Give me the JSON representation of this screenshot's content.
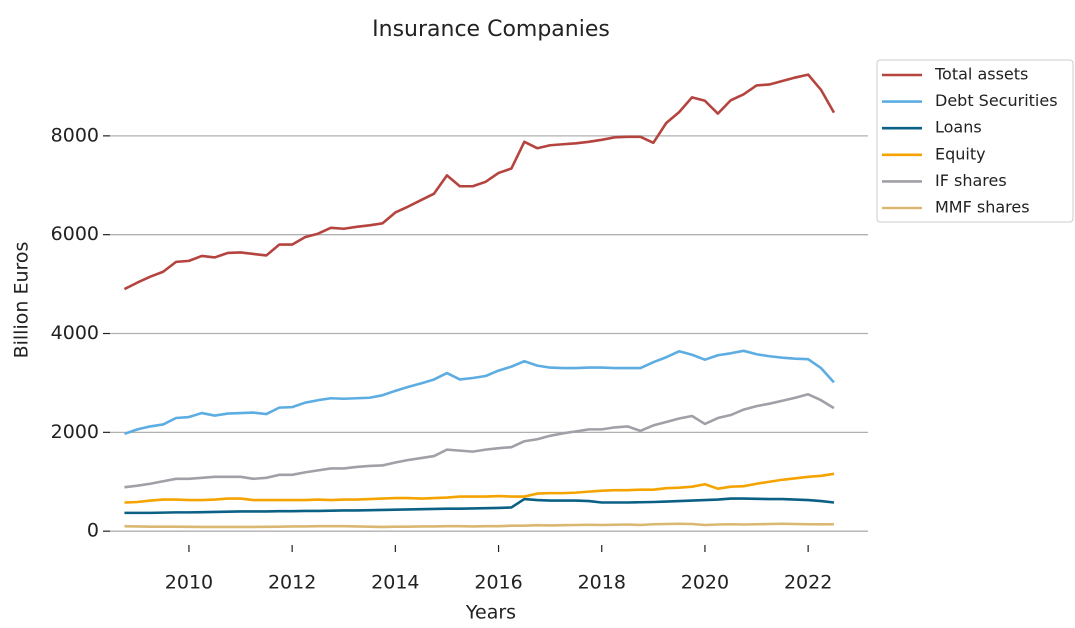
{
  "chart_data": {
    "type": "line",
    "title": "Insurance Companies",
    "x_label": "Years",
    "y_label": "Billion Euros",
    "x": [
      2008.75,
      2009,
      2009.25,
      2009.5,
      2009.75,
      2010,
      2010.25,
      2010.5,
      2010.75,
      2011,
      2011.25,
      2011.5,
      2011.75,
      2012,
      2012.25,
      2012.5,
      2012.75,
      2013,
      2013.25,
      2013.5,
      2013.75,
      2014,
      2014.25,
      2014.5,
      2014.75,
      2015,
      2015.25,
      2015.5,
      2015.75,
      2016,
      2016.25,
      2016.5,
      2016.75,
      2017,
      2017.25,
      2017.5,
      2017.75,
      2018,
      2018.25,
      2018.5,
      2018.75,
      2019,
      2019.25,
      2019.5,
      2019.75,
      2020,
      2020.25,
      2020.5,
      2020.75,
      2021,
      2021.25,
      2021.5,
      2021.75,
      2022,
      2022.25,
      2022.5
    ],
    "series": [
      {
        "name": "Total assets",
        "color": "#b5443f",
        "values": [
          4900,
          5030,
          5150,
          5250,
          5450,
          5470,
          5570,
          5540,
          5630,
          5640,
          5610,
          5580,
          5800,
          5800,
          5950,
          6020,
          6140,
          6120,
          6160,
          6190,
          6230,
          6450,
          6570,
          6700,
          6830,
          7200,
          6980,
          6980,
          7070,
          7250,
          7340,
          7880,
          7750,
          7810,
          7830,
          7850,
          7880,
          7920,
          7970,
          7980,
          7980,
          7860,
          8260,
          8480,
          8780,
          8710,
          8450,
          8720,
          8840,
          9020,
          9040,
          9110,
          9180,
          9240,
          8930,
          8470
        ]
      },
      {
        "name": "Debt Securities",
        "color": "#5dade2",
        "values": [
          1970,
          2060,
          2120,
          2160,
          2290,
          2310,
          2390,
          2340,
          2380,
          2390,
          2400,
          2370,
          2500,
          2510,
          2600,
          2650,
          2690,
          2680,
          2690,
          2700,
          2750,
          2840,
          2920,
          2990,
          3070,
          3200,
          3070,
          3100,
          3140,
          3250,
          3330,
          3440,
          3350,
          3310,
          3300,
          3300,
          3310,
          3310,
          3300,
          3300,
          3300,
          3420,
          3520,
          3640,
          3570,
          3470,
          3560,
          3600,
          3650,
          3580,
          3540,
          3510,
          3490,
          3480,
          3300,
          3010
        ]
      },
      {
        "name": "Loans",
        "color": "#0b6185",
        "values": [
          370,
          370,
          370,
          375,
          380,
          380,
          385,
          390,
          395,
          400,
          400,
          400,
          405,
          405,
          410,
          410,
          415,
          420,
          420,
          425,
          430,
          435,
          440,
          445,
          450,
          455,
          455,
          460,
          465,
          470,
          480,
          650,
          630,
          620,
          620,
          620,
          610,
          580,
          580,
          580,
          585,
          590,
          600,
          610,
          620,
          630,
          640,
          660,
          660,
          655,
          650,
          650,
          640,
          630,
          610,
          580
        ]
      },
      {
        "name": "Equity",
        "color": "#f5a300",
        "values": [
          580,
          590,
          620,
          640,
          640,
          630,
          630,
          640,
          660,
          660,
          630,
          630,
          630,
          630,
          630,
          640,
          630,
          640,
          640,
          650,
          660,
          670,
          670,
          660,
          670,
          680,
          700,
          700,
          700,
          710,
          700,
          700,
          760,
          770,
          770,
          780,
          800,
          820,
          830,
          830,
          840,
          840,
          870,
          880,
          900,
          950,
          860,
          900,
          910,
          960,
          1000,
          1040,
          1070,
          1100,
          1120,
          1160
        ]
      },
      {
        "name": "IF shares",
        "color": "#a0a0a8",
        "values": [
          890,
          920,
          960,
          1010,
          1060,
          1060,
          1080,
          1100,
          1100,
          1100,
          1060,
          1080,
          1140,
          1140,
          1190,
          1230,
          1270,
          1270,
          1300,
          1320,
          1330,
          1390,
          1440,
          1480,
          1520,
          1650,
          1630,
          1610,
          1650,
          1680,
          1700,
          1820,
          1860,
          1930,
          1980,
          2020,
          2060,
          2060,
          2100,
          2120,
          2030,
          2140,
          2210,
          2280,
          2330,
          2170,
          2290,
          2350,
          2460,
          2530,
          2580,
          2640,
          2700,
          2770,
          2650,
          2490
        ]
      },
      {
        "name": "MMF shares",
        "color": "#dbb872",
        "values": [
          100,
          95,
          90,
          90,
          90,
          88,
          85,
          85,
          85,
          85,
          85,
          88,
          90,
          95,
          95,
          100,
          100,
          100,
          95,
          90,
          85,
          90,
          90,
          95,
          95,
          100,
          100,
          95,
          100,
          100,
          110,
          110,
          120,
          115,
          120,
          125,
          130,
          125,
          130,
          135,
          125,
          140,
          145,
          150,
          145,
          125,
          135,
          140,
          135,
          140,
          145,
          150,
          145,
          140,
          138,
          140
        ]
      }
    ],
    "xlim": [
      2008.47,
      2023.16
    ],
    "xticks": [
      2010,
      2012,
      2014,
      2016,
      2018,
      2020,
      2022
    ],
    "ylim": [
      -280,
      9940
    ],
    "yticks": [
      0,
      2000,
      4000,
      6000,
      8000
    ],
    "grid": true,
    "legend": "upper right outside"
  }
}
